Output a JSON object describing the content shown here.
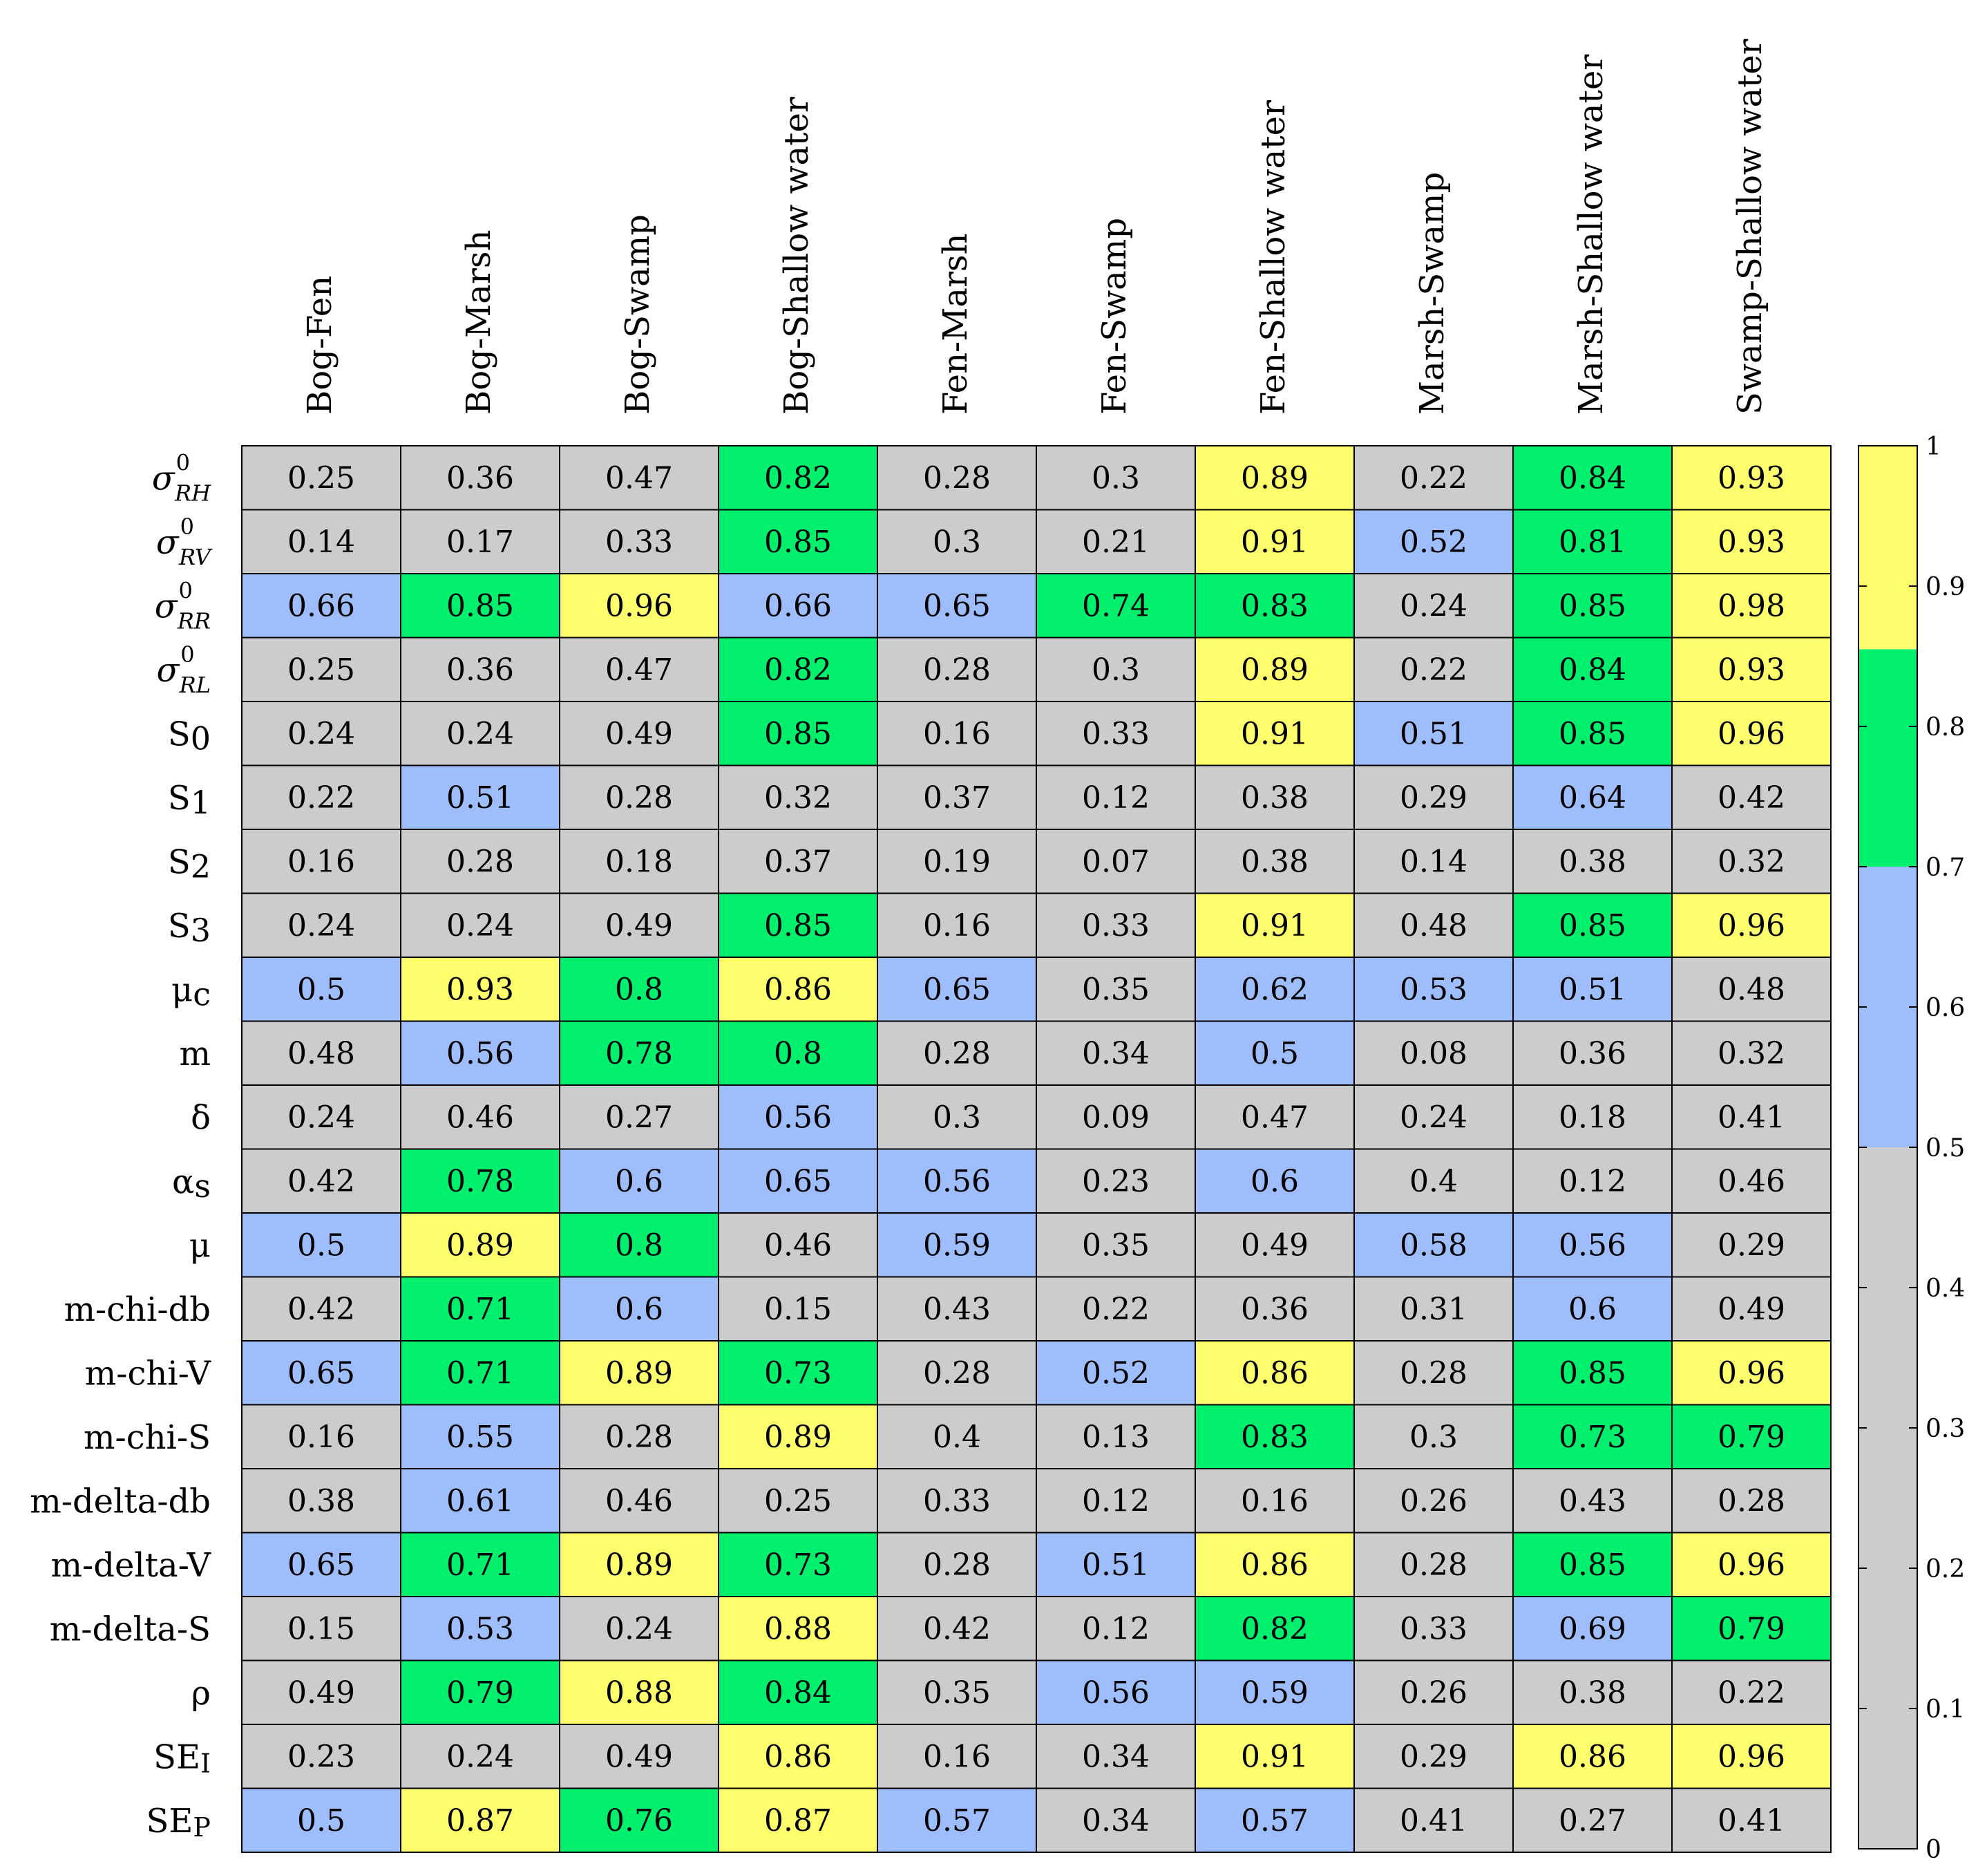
{
  "chart_data": {
    "type": "heatmap",
    "title": "",
    "columns": [
      "Bog-Fen",
      "Bog-Marsh",
      "Bog-Swamp",
      "Bog-Shallow water",
      "Fen-Marsh",
      "Fen-Swamp",
      "Fen-Shallow water",
      "Marsh-Swamp",
      "Marsh-Shallow water",
      "Swamp-Shallow water"
    ],
    "rows": [
      {
        "label": "σ",
        "sup": "0",
        "sub": "RH",
        "values": [
          0.25,
          0.36,
          0.47,
          0.82,
          0.28,
          0.3,
          0.89,
          0.22,
          0.84,
          0.93
        ]
      },
      {
        "label": "σ",
        "sup": "0",
        "sub": "RV",
        "values": [
          0.14,
          0.17,
          0.33,
          0.85,
          0.3,
          0.21,
          0.91,
          0.52,
          0.81,
          0.93
        ]
      },
      {
        "label": "σ",
        "sup": "0",
        "sub": "RR",
        "values": [
          0.66,
          0.85,
          0.96,
          0.66,
          0.65,
          0.74,
          0.83,
          0.24,
          0.85,
          0.98
        ]
      },
      {
        "label": "σ",
        "sup": "0",
        "sub": "RL",
        "values": [
          0.25,
          0.36,
          0.47,
          0.82,
          0.28,
          0.3,
          0.89,
          0.22,
          0.84,
          0.93
        ]
      },
      {
        "label": "S",
        "sub": "0",
        "values": [
          0.24,
          0.24,
          0.49,
          0.85,
          0.16,
          0.33,
          0.91,
          0.51,
          0.85,
          0.96
        ]
      },
      {
        "label": "S",
        "sub": "1",
        "values": [
          0.22,
          0.51,
          0.28,
          0.32,
          0.37,
          0.12,
          0.38,
          0.29,
          0.64,
          0.42
        ]
      },
      {
        "label": "S",
        "sub": "2",
        "values": [
          0.16,
          0.28,
          0.18,
          0.37,
          0.19,
          0.07,
          0.38,
          0.14,
          0.38,
          0.32
        ]
      },
      {
        "label": "S",
        "sub": "3",
        "values": [
          0.24,
          0.24,
          0.49,
          0.85,
          0.16,
          0.33,
          0.91,
          0.48,
          0.85,
          0.96
        ]
      },
      {
        "label": "μ",
        "sub": "c",
        "values": [
          0.5,
          0.93,
          0.8,
          0.86,
          0.65,
          0.35,
          0.62,
          0.53,
          0.51,
          0.48
        ]
      },
      {
        "label": "m",
        "values": [
          0.48,
          0.56,
          0.78,
          0.8,
          0.28,
          0.34,
          0.5,
          0.08,
          0.36,
          0.32
        ]
      },
      {
        "label": "δ",
        "values": [
          0.24,
          0.46,
          0.27,
          0.56,
          0.3,
          0.09,
          0.47,
          0.24,
          0.18,
          0.41
        ]
      },
      {
        "label": "α",
        "sub": "s",
        "values": [
          0.42,
          0.78,
          0.6,
          0.65,
          0.56,
          0.23,
          0.6,
          0.4,
          0.12,
          0.46
        ]
      },
      {
        "label": "μ",
        "values": [
          0.5,
          0.89,
          0.8,
          0.46,
          0.59,
          0.35,
          0.49,
          0.58,
          0.56,
          0.29
        ]
      },
      {
        "label": "m-chi-db",
        "values": [
          0.42,
          0.71,
          0.6,
          0.15,
          0.43,
          0.22,
          0.36,
          0.31,
          0.6,
          0.49
        ]
      },
      {
        "label": "m-chi-V",
        "values": [
          0.65,
          0.71,
          0.89,
          0.73,
          0.28,
          0.52,
          0.86,
          0.28,
          0.85,
          0.96
        ]
      },
      {
        "label": "m-chi-S",
        "values": [
          0.16,
          0.55,
          0.28,
          0.89,
          0.4,
          0.13,
          0.83,
          0.3,
          0.73,
          0.79
        ]
      },
      {
        "label": "m-delta-db",
        "values": [
          0.38,
          0.61,
          0.46,
          0.25,
          0.33,
          0.12,
          0.16,
          0.26,
          0.43,
          0.28
        ]
      },
      {
        "label": "m-delta-V",
        "values": [
          0.65,
          0.71,
          0.89,
          0.73,
          0.28,
          0.51,
          0.86,
          0.28,
          0.85,
          0.96
        ]
      },
      {
        "label": "m-delta-S",
        "values": [
          0.15,
          0.53,
          0.24,
          0.88,
          0.42,
          0.12,
          0.82,
          0.33,
          0.69,
          0.79
        ]
      },
      {
        "label": "ρ",
        "values": [
          0.49,
          0.79,
          0.88,
          0.84,
          0.35,
          0.56,
          0.59,
          0.26,
          0.38,
          0.22
        ]
      },
      {
        "label": "SE",
        "sub": "I",
        "values": [
          0.23,
          0.24,
          0.49,
          0.86,
          0.16,
          0.34,
          0.91,
          0.29,
          0.86,
          0.96
        ]
      },
      {
        "label": "SE",
        "sub": "P",
        "values": [
          0.5,
          0.87,
          0.76,
          0.87,
          0.57,
          0.34,
          0.57,
          0.41,
          0.27,
          0.41
        ]
      }
    ],
    "colorbar": {
      "range": [
        0,
        1
      ],
      "ticks": [
        0,
        0.1,
        0.2,
        0.3,
        0.4,
        0.5,
        0.6,
        0.7,
        0.8,
        0.9,
        1
      ],
      "tick_labels": [
        "0",
        "0.1",
        "0.2",
        "0.3",
        "0.4",
        "0.5",
        "0.6",
        "0.7",
        "0.8",
        "0.9",
        "1"
      ],
      "bands": [
        {
          "from": 0,
          "to": 0.5,
          "color": "#cccccc"
        },
        {
          "from": 0.5,
          "to": 0.7,
          "color": "#9dbdfc"
        },
        {
          "from": 0.7,
          "to": 0.855,
          "color": "#00ef6c"
        },
        {
          "from": 0.855,
          "to": 1,
          "color": "#ffff6d"
        }
      ]
    }
  }
}
